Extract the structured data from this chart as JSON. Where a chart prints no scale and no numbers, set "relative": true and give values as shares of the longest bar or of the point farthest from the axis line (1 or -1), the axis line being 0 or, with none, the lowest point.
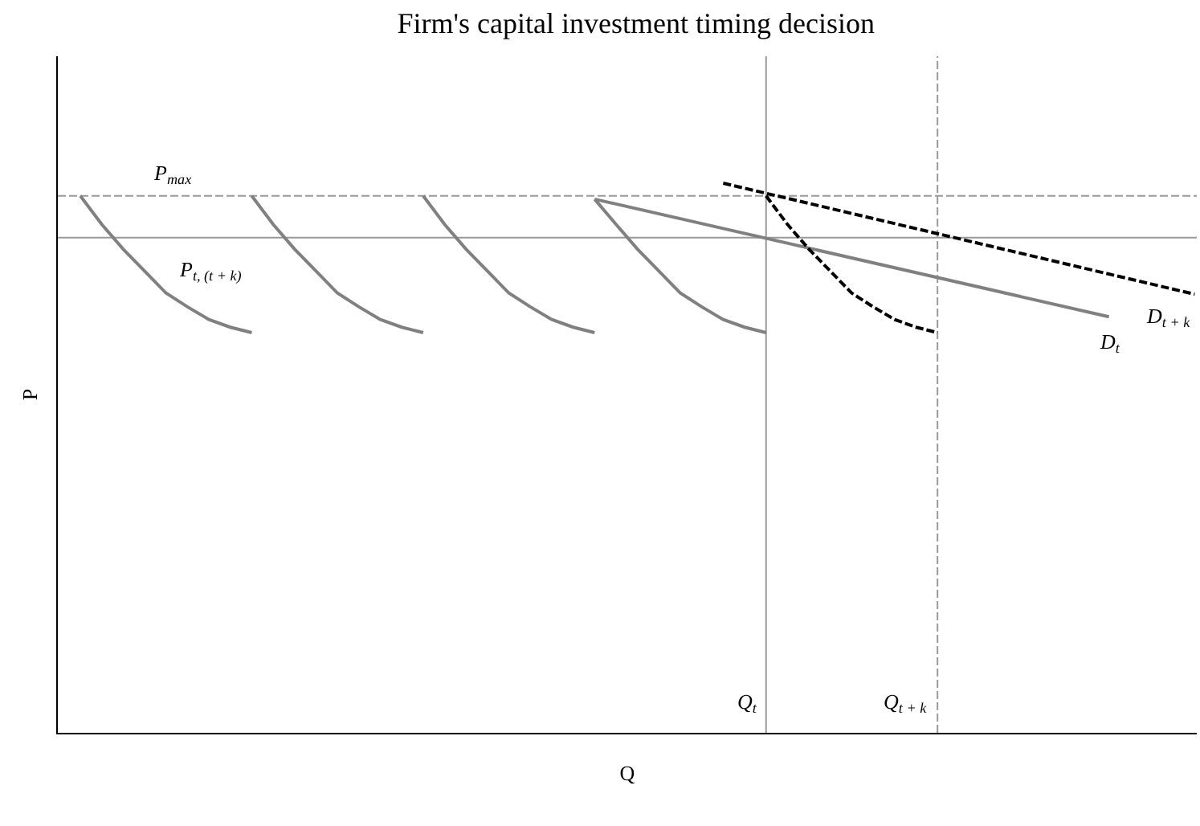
{
  "chart_data": {
    "type": "line",
    "title": "Firm's capital investment timing decision",
    "xlabel": "Q",
    "ylabel": "P",
    "relative": true,
    "grid": false,
    "legend": false,
    "marker": "none",
    "categories": [
      null,
      null,
      null,
      null,
      null,
      null,
      null,
      null,
      null,
      null,
      null,
      null,
      null,
      null,
      null,
      null,
      null,
      null,
      null,
      null,
      null,
      null,
      null,
      null,
      null,
      null,
      null,
      null,
      null,
      null,
      null,
      null,
      null,
      null,
      null,
      null,
      null,
      null,
      null,
      null,
      null,
      null,
      null,
      null,
      null,
      null,
      null,
      null,
      null,
      null,
      null,
      null,
      null
    ],
    "series": [
      {
        "name": "P$_{t, (t + k)}$",
        "color": "#808080",
        "line_style": "solid",
        "values": [
          0.977,
          0.925,
          0.88,
          0.84,
          0.8,
          0.775,
          0.752,
          0.738,
          0.728,
          null,
          null,
          null,
          null,
          null,
          null,
          null,
          null,
          null,
          null,
          null,
          null,
          null,
          null,
          null,
          null,
          null,
          null,
          null,
          null,
          null,
          null,
          null,
          null,
          null,
          null,
          null,
          null,
          null,
          null,
          null,
          null,
          null,
          null,
          null,
          null,
          null,
          null,
          null,
          null,
          null,
          null,
          null,
          null
        ]
      },
      {
        "color": "#808080",
        "line_style": "solid",
        "values": [
          null,
          null,
          null,
          null,
          null,
          null,
          null,
          null,
          0.977,
          0.925,
          0.88,
          0.84,
          0.8,
          0.775,
          0.752,
          0.738,
          0.728,
          null,
          null,
          null,
          null,
          null,
          null,
          null,
          null,
          null,
          null,
          null,
          null,
          null,
          null,
          null,
          null,
          null,
          null,
          null,
          null,
          null,
          null,
          null,
          null,
          null,
          null,
          null,
          null,
          null,
          null,
          null,
          null,
          null,
          null,
          null,
          null
        ]
      },
      {
        "color": "#808080",
        "line_style": "solid",
        "values": [
          null,
          null,
          null,
          null,
          null,
          null,
          null,
          null,
          null,
          null,
          null,
          null,
          null,
          null,
          null,
          null,
          0.977,
          0.925,
          0.88,
          0.84,
          0.8,
          0.775,
          0.752,
          0.738,
          0.728,
          null,
          null,
          null,
          null,
          null,
          null,
          null,
          null,
          null,
          null,
          null,
          null,
          null,
          null,
          null,
          null,
          null,
          null,
          null,
          null,
          null,
          null,
          null,
          null,
          null,
          null,
          null,
          null
        ]
      },
      {
        "color": "#808080",
        "line_style": "solid",
        "values": [
          null,
          null,
          null,
          null,
          null,
          null,
          null,
          null,
          null,
          null,
          null,
          null,
          null,
          null,
          null,
          null,
          null,
          null,
          null,
          null,
          null,
          null,
          null,
          null,
          0.971,
          0.925,
          0.88,
          0.84,
          0.8,
          0.775,
          0.752,
          0.738,
          0.728,
          null,
          null,
          null,
          null,
          null,
          null,
          null,
          null,
          null,
          null,
          null,
          null,
          null,
          null,
          null,
          null,
          null,
          null,
          null,
          null
        ]
      },
      {
        "name": "D$_{t}$",
        "color": "#808080",
        "line_style": "solid",
        "values": [
          null,
          null,
          null,
          null,
          null,
          null,
          null,
          null,
          null,
          null,
          null,
          null,
          null,
          null,
          null,
          null,
          null,
          null,
          null,
          null,
          null,
          null,
          null,
          null,
          0.971,
          null,
          null,
          null,
          null,
          null,
          null,
          null,
          null,
          null,
          null,
          null,
          null,
          null,
          null,
          null,
          null,
          null,
          null,
          null,
          null,
          null,
          null,
          null,
          0.757,
          null,
          null,
          null,
          null
        ]
      },
      {
        "name": "D$_{t + k}$",
        "color": "#000000",
        "line_style": "dashed",
        "values": [
          null,
          null,
          null,
          null,
          null,
          null,
          null,
          null,
          null,
          null,
          null,
          null,
          null,
          null,
          null,
          null,
          null,
          null,
          null,
          null,
          null,
          null,
          null,
          null,
          null,
          null,
          null,
          null,
          null,
          null,
          1.0,
          null,
          null,
          null,
          null,
          null,
          null,
          null,
          null,
          null,
          null,
          null,
          null,
          null,
          null,
          null,
          null,
          null,
          null,
          null,
          null,
          null,
          0.798
        ]
      },
      {
        "color": "#000000",
        "line_style": "dashed",
        "values": [
          null,
          null,
          null,
          null,
          null,
          null,
          null,
          null,
          null,
          null,
          null,
          null,
          null,
          null,
          null,
          null,
          null,
          null,
          null,
          null,
          null,
          null,
          null,
          null,
          null,
          null,
          null,
          null,
          null,
          null,
          null,
          null,
          0.977,
          0.925,
          0.88,
          0.84,
          0.8,
          0.775,
          0.752,
          0.738,
          0.728,
          null,
          null,
          null,
          null,
          null,
          null,
          null,
          null,
          null,
          null,
          null,
          null
        ]
      }
    ],
    "ref_lines": [
      {
        "axis": "y",
        "value": 0.977,
        "label": "P$_{max}$",
        "color": "#999999",
        "line_style": "dashed"
      },
      {
        "axis": "y",
        "value": 0.901,
        "color": "#999999",
        "line_style": "solid"
      },
      {
        "axis": "x",
        "label": "Q$_{t}$",
        "color": "#999999",
        "line_style": "solid"
      },
      {
        "axis": "x",
        "label": "Q$_{t + k}$",
        "color": "#999999",
        "line_style": "dashed"
      }
    ]
  }
}
